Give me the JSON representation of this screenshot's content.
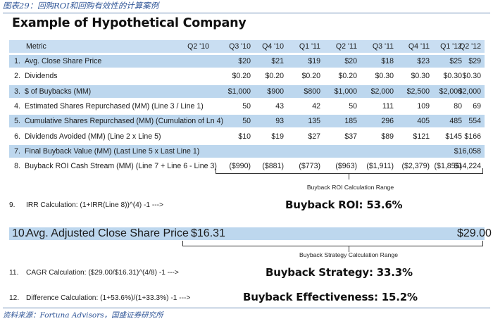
{
  "caption": "图表29：回购ROI和回购有效性的计算案例",
  "title": "Example of Hypothetical Company",
  "table": {
    "header": {
      "metric": "Metric",
      "quarters": [
        "Q2 '10",
        "Q3 '10",
        "Q4 '10",
        "Q1 '11",
        "Q2 '11",
        "Q3 '11",
        "Q4 '11",
        "Q1 '12",
        "Q2 '12"
      ]
    },
    "rows": [
      {
        "idx": "1.",
        "label": "Avg. Close Share Price",
        "values": [
          "",
          "$20",
          "$21",
          "$19",
          "$20",
          "$18",
          "$23",
          "$25",
          "$29"
        ]
      },
      {
        "idx": "2.",
        "label": "Dividends",
        "values": [
          "",
          "$0.20",
          "$0.20",
          "$0.20",
          "$0.20",
          "$0.30",
          "$0.30",
          "$0.30",
          "$0.30"
        ]
      },
      {
        "idx": "3.",
        "label": "$ of Buybacks (MM)",
        "values": [
          "",
          "$1,000",
          "$900",
          "$800",
          "$1,000",
          "$2,000",
          "$2,500",
          "$2,000",
          "$2,000"
        ]
      },
      {
        "idx": "4.",
        "label": "Estimated Shares Repurchased (MM) (Line 3 / Line  1)",
        "values": [
          "",
          "50",
          "43",
          "42",
          "50",
          "111",
          "109",
          "80",
          "69"
        ]
      },
      {
        "idx": "5.",
        "label": "Cumulative Shares Repurchased (MM) (Cumulation of Ln 4)",
        "values": [
          "",
          "50",
          "93",
          "135",
          "185",
          "296",
          "405",
          "485",
          "554"
        ]
      },
      {
        "idx": "6.",
        "label": "Dividends Avoided (MM) (Line 2 x Line 5)",
        "values": [
          "",
          "$10",
          "$19",
          "$27",
          "$37",
          "$89",
          "$121",
          "$145",
          "$166"
        ]
      },
      {
        "idx": "7.",
        "label": "Final Buyback Value (MM) (Last Line 5 x Last Line 1)",
        "values": [
          "",
          "",
          "",
          "",
          "",
          "",
          "",
          "",
          "$16,058"
        ]
      },
      {
        "idx": "8.",
        "label": "Buyback ROI Cash Stream (MM) (Line 7 + Line 6 - Line 3)",
        "values": [
          "",
          "($990)",
          "($881)",
          "($773)",
          "($963)",
          "($1,911)",
          "($2,379)",
          "($1,855)",
          "$14,224"
        ]
      }
    ]
  },
  "roi_range_label": "Buyback ROI Calculation Range",
  "irr": {
    "idx": "9.",
    "text": "IRR Calculation: (1+IRR(Line 8))^(4) -1  --->",
    "result": "Buyback ROI:  53.6%"
  },
  "avg_adj": {
    "idx": "10.",
    "label": "Avg. Adjusted Close Share Price",
    "start": "$16.31",
    "end": "$29.00"
  },
  "strategy_range_label": "Buyback Strategy Calculation Range",
  "cagr": {
    "idx": "11.",
    "text": "CAGR Calculation: ($29.00/$16.31)^(4/8) -1  --->",
    "result": "Buyback Strategy:  33.3%"
  },
  "diff": {
    "idx": "12.",
    "text": "Difference Calculation: (1+53.6%)/(1+33.3%) -1  --->",
    "result": "Buyback Effectiveness:  15.2%"
  },
  "source": "资料来源：Fortuna Advisors，国盛证券研究所"
}
